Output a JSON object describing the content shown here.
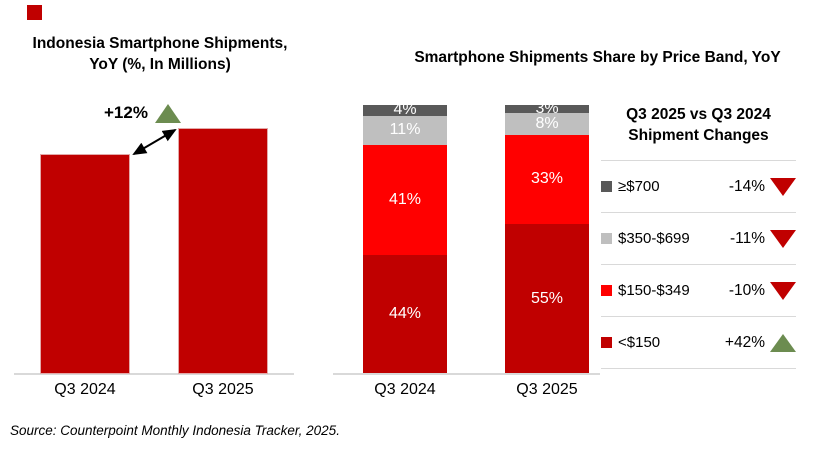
{
  "brand": {
    "mark_color": "#C00000"
  },
  "colors": {
    "dark_red": "#C00000",
    "bright_red": "#FF0000",
    "light_gray": "#BFBFBF",
    "dark_gray": "#595959",
    "green": "#6C8C50",
    "divider": "#D9D9D9",
    "axis_line": "#D9D9D9"
  },
  "left_chart": {
    "title_line1": "Indonesia Smartphone Shipments,",
    "title_line2": "YoY (%, In Millions)",
    "annotation": "+12%"
  },
  "right_chart": {
    "title": "Smartphone Shipments Share by Price Band, YoY"
  },
  "legend": {
    "title_line1": "Q3 2025 vs Q3 2024",
    "title_line2": "Shipment Changes",
    "rows": [
      {
        "swatch": "#595959",
        "label": "≥$700",
        "change": "-14%",
        "direction": "down"
      },
      {
        "swatch": "#BFBFBF",
        "label": "$350-$699",
        "change": "-11%",
        "direction": "down"
      },
      {
        "swatch": "#FF0000",
        "label": "$150-$349",
        "change": "-10%",
        "direction": "down"
      },
      {
        "swatch": "#C00000",
        "label": "<$150",
        "change": "+42%",
        "direction": "up"
      }
    ]
  },
  "source": "Source: Counterpoint Monthly Indonesia Tracker, 2025.",
  "chart_data": [
    {
      "type": "bar",
      "title": "Indonesia Smartphone Shipments, YoY (%, In Millions)",
      "categories": [
        "Q3 2024",
        "Q3 2025"
      ],
      "values": [
        100,
        112
      ],
      "annotation": "+12% YoY growth from Q3 2024 to Q3 2025",
      "bar_color": "#C00000",
      "ylabel": "",
      "xlabel": "",
      "value_axis_visible": false,
      "grid": false
    },
    {
      "type": "bar",
      "stacked": true,
      "title": "Smartphone Shipments Share by Price Band, YoY",
      "categories": [
        "Q3 2024",
        "Q3 2025"
      ],
      "series": [
        {
          "name": "<$150",
          "color": "#C00000",
          "values": [
            44,
            55
          ]
        },
        {
          "name": "$150-$349",
          "color": "#FF0000",
          "values": [
            41,
            33
          ]
        },
        {
          "name": "$350-$699",
          "color": "#BFBFBF",
          "values": [
            11,
            8
          ]
        },
        {
          "name": "≥$700",
          "color": "#595959",
          "values": [
            4,
            3
          ]
        }
      ],
      "unit": "%",
      "ylim": [
        0,
        100
      ],
      "grid": false,
      "legend_position": "right",
      "legend_changes": {
        "≥$700": "-14%",
        "$350-$699": "-11%",
        "$150-$349": "-10%",
        "<$150": "+42%"
      }
    }
  ]
}
